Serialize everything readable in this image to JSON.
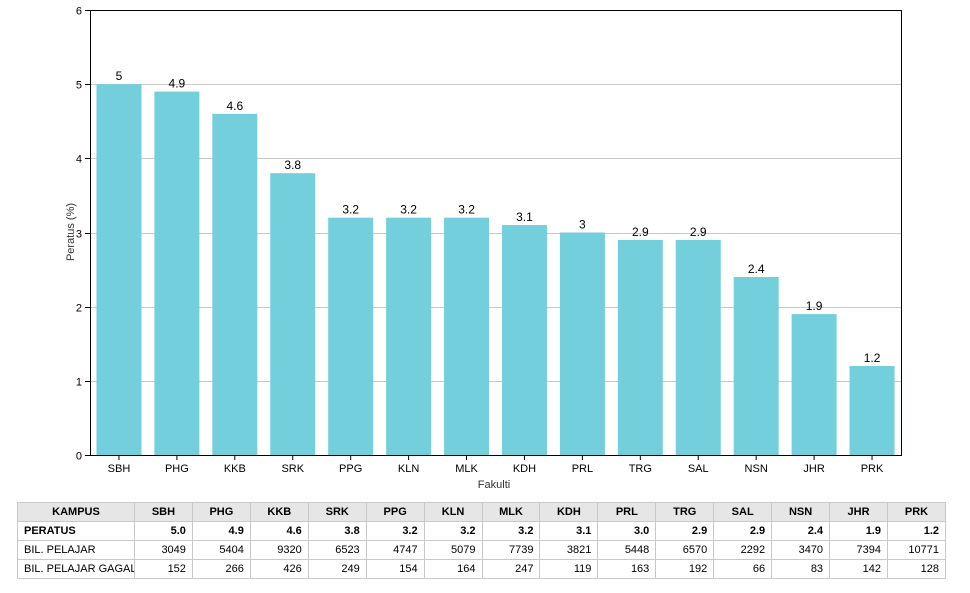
{
  "chart_data": {
    "type": "bar",
    "categories": [
      "SBH",
      "PHG",
      "KKB",
      "SRK",
      "PPG",
      "KLN",
      "MLK",
      "KDH",
      "PRL",
      "TRG",
      "SAL",
      "NSN",
      "JHR",
      "PRK"
    ],
    "values": [
      5,
      4.9,
      4.6,
      3.8,
      3.2,
      3.2,
      3.2,
      3.1,
      3,
      2.9,
      2.9,
      2.4,
      1.9,
      1.2
    ],
    "value_labels": [
      "5",
      "4.9",
      "4.6",
      "3.8",
      "3.2",
      "3.2",
      "3.2",
      "3.1",
      "3",
      "2.9",
      "2.9",
      "2.4",
      "1.9",
      "1.2"
    ],
    "xlabel": "Fakulti",
    "ylabel": "Peratus (%)",
    "ylim": [
      0,
      6
    ],
    "yticks": [
      "0",
      "1",
      "2",
      "3",
      "4",
      "5",
      "6"
    ],
    "grid": true,
    "bar_color": "#74cfdd"
  },
  "table": {
    "header_label": "KAMPUS",
    "columns": [
      "SBH",
      "PHG",
      "KKB",
      "SRK",
      "PPG",
      "KLN",
      "MLK",
      "KDH",
      "PRL",
      "TRG",
      "SAL",
      "NSN",
      "JHR",
      "PRK"
    ],
    "rows": [
      {
        "label": "PERATUS",
        "bold": true,
        "values": [
          "5.0",
          "4.9",
          "4.6",
          "3.8",
          "3.2",
          "3.2",
          "3.2",
          "3.1",
          "3.0",
          "2.9",
          "2.9",
          "2.4",
          "1.9",
          "1.2"
        ]
      },
      {
        "label": "BIL. PELAJAR",
        "bold": false,
        "values": [
          "3049",
          "5404",
          "9320",
          "6523",
          "4747",
          "5079",
          "7739",
          "3821",
          "5448",
          "6570",
          "2292",
          "3470",
          "7394",
          "10771"
        ]
      },
      {
        "label": "BIL. PELAJAR GAGAL",
        "bold": false,
        "values": [
          "152",
          "266",
          "426",
          "249",
          "154",
          "164",
          "247",
          "119",
          "163",
          "192",
          "66",
          "83",
          "142",
          "128"
        ]
      }
    ]
  }
}
